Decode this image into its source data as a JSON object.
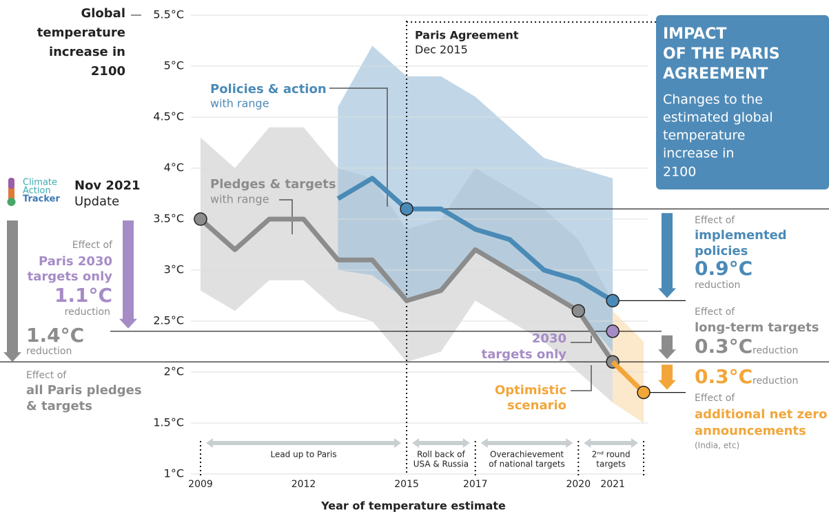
{
  "chart_data": {
    "type": "line",
    "ylabel": [
      "Global",
      "temperature",
      "increase in",
      "2100"
    ],
    "xlabel": "Year of temperature estimate",
    "xlim": [
      2009,
      2022
    ],
    "ylim": [
      1,
      5.5
    ],
    "xticks": [
      2009,
      2012,
      2015,
      2017,
      2020,
      2021
    ],
    "yticks": [
      {
        "value": 1,
        "label": "1°C"
      },
      {
        "value": 1.5,
        "label": "1.5°C"
      },
      {
        "value": 2,
        "label": "2°C"
      },
      {
        "value": 2.5,
        "label": "2.5°C"
      },
      {
        "value": 3,
        "label": "3°C"
      },
      {
        "value": 3.5,
        "label": "3.5°C"
      },
      {
        "value": 4,
        "label": "4°C"
      },
      {
        "value": 4.5,
        "label": "4.5°C"
      },
      {
        "value": 5,
        "label": "5°C"
      },
      {
        "value": 5.5,
        "label": "5.5°C"
      }
    ],
    "grid": true,
    "ranges": [
      {
        "color": "#cfcfcf",
        "x": [
          2009,
          2010,
          2011,
          2012,
          2013,
          2014,
          2015,
          2016,
          2017,
          2018,
          2019,
          2020,
          2021
        ],
        "high": [
          4.3,
          4.0,
          4.4,
          4.4,
          4.0,
          3.9,
          3.4,
          3.5,
          4.0,
          3.8,
          3.6,
          3.3,
          2.7
        ],
        "low": [
          2.8,
          2.6,
          2.9,
          2.9,
          2.6,
          2.5,
          2.1,
          2.2,
          2.7,
          2.5,
          2.3,
          2.0,
          1.7
        ]
      },
      {
        "color": "#9fc1dc",
        "x": [
          2013,
          2014,
          2015,
          2016,
          2017,
          2018,
          2019,
          2020,
          2021
        ],
        "high": [
          4.6,
          5.2,
          4.9,
          4.9,
          4.7,
          4.4,
          4.1,
          4.0,
          3.9
        ],
        "low": [
          3.0,
          2.95,
          2.7,
          2.8,
          3.2,
          3.0,
          2.8,
          2.6,
          2.2
        ]
      },
      {
        "color": "#fbdcaf",
        "x": [
          2021,
          2021.9
        ],
        "high": [
          2.6,
          2.3
        ],
        "low": [
          1.7,
          1.5
        ]
      }
    ],
    "series": [
      {
        "name": "Pledges & targets",
        "color": "#8c8c8c",
        "x": [
          2009,
          2010,
          2011,
          2012,
          2013,
          2014,
          2015,
          2016,
          2017,
          2020,
          2021
        ],
        "values": [
          3.5,
          3.2,
          3.5,
          3.5,
          3.1,
          3.1,
          2.7,
          2.8,
          3.2,
          2.6,
          2.1
        ],
        "markers": [
          0,
          9,
          10
        ]
      },
      {
        "name": "Policies & action",
        "color": "#4a8ab7",
        "x": [
          2013,
          2014,
          2015,
          2016,
          2017,
          2018,
          2019,
          2020,
          2021
        ],
        "values": [
          3.7,
          3.9,
          3.6,
          3.6,
          3.4,
          3.3,
          3.0,
          2.9,
          2.7
        ],
        "markers": [
          2,
          8
        ]
      },
      {
        "color": "#a68cc6",
        "x": [
          2021
        ],
        "values": [
          2.4
        ],
        "markers": [
          0
        ]
      },
      {
        "color": "#f2a63a",
        "x": [
          2021,
          2021.9
        ],
        "values": [
          2.1,
          1.8
        ],
        "markers": [
          1
        ]
      }
    ],
    "periods": [
      {
        "start": 2009,
        "end": 2015,
        "label": [
          "Lead up to Paris"
        ]
      },
      {
        "start": 2015,
        "end": 2017,
        "label": [
          "Roll back of",
          "USA & Russia"
        ]
      },
      {
        "start": 2017,
        "end": 2020,
        "label": [
          "Overachievement",
          "of national targets"
        ]
      },
      {
        "start": 2020,
        "end": 2021.9,
        "label": [
          "2ⁿᵈ round",
          "targets"
        ]
      }
    ],
    "annotations": {
      "paris": [
        "Paris Agreement",
        "Dec 2015"
      ],
      "policies_sub": "with range",
      "pledges_sub": "with range",
      "logo": [
        "Climate",
        "Action",
        "Tracker"
      ],
      "update": [
        "Nov 2021",
        "Update"
      ],
      "box_title": [
        "IMPACT",
        "OF THE PARIS",
        "AGREEMENT"
      ],
      "box_text": [
        "Changes to the",
        "estimated global",
        "temperature",
        "increase in",
        "2100"
      ],
      "effect_paris2030": [
        "Effect of",
        "Paris 2030",
        "targets only",
        "1.1°C",
        "reduction"
      ],
      "effect_all": [
        "1.4°C",
        "reduction",
        "Effect of",
        "all Paris pledges",
        "& targets"
      ],
      "effect_policies": [
        "Effect of",
        "implemented",
        "policies",
        "0.9°C",
        "reduction"
      ],
      "effect_longterm": [
        "Effect of",
        "long-term targets",
        "0.3°C",
        "reduction"
      ],
      "effect_netzero": [
        "0.3°C",
        "reduction",
        "Effect of",
        "additional net zero",
        "announcements",
        "(India, etc)"
      ],
      "targets2030": [
        "2030",
        "targets only"
      ],
      "optimistic": [
        "Optimistic",
        "scenario"
      ]
    }
  }
}
